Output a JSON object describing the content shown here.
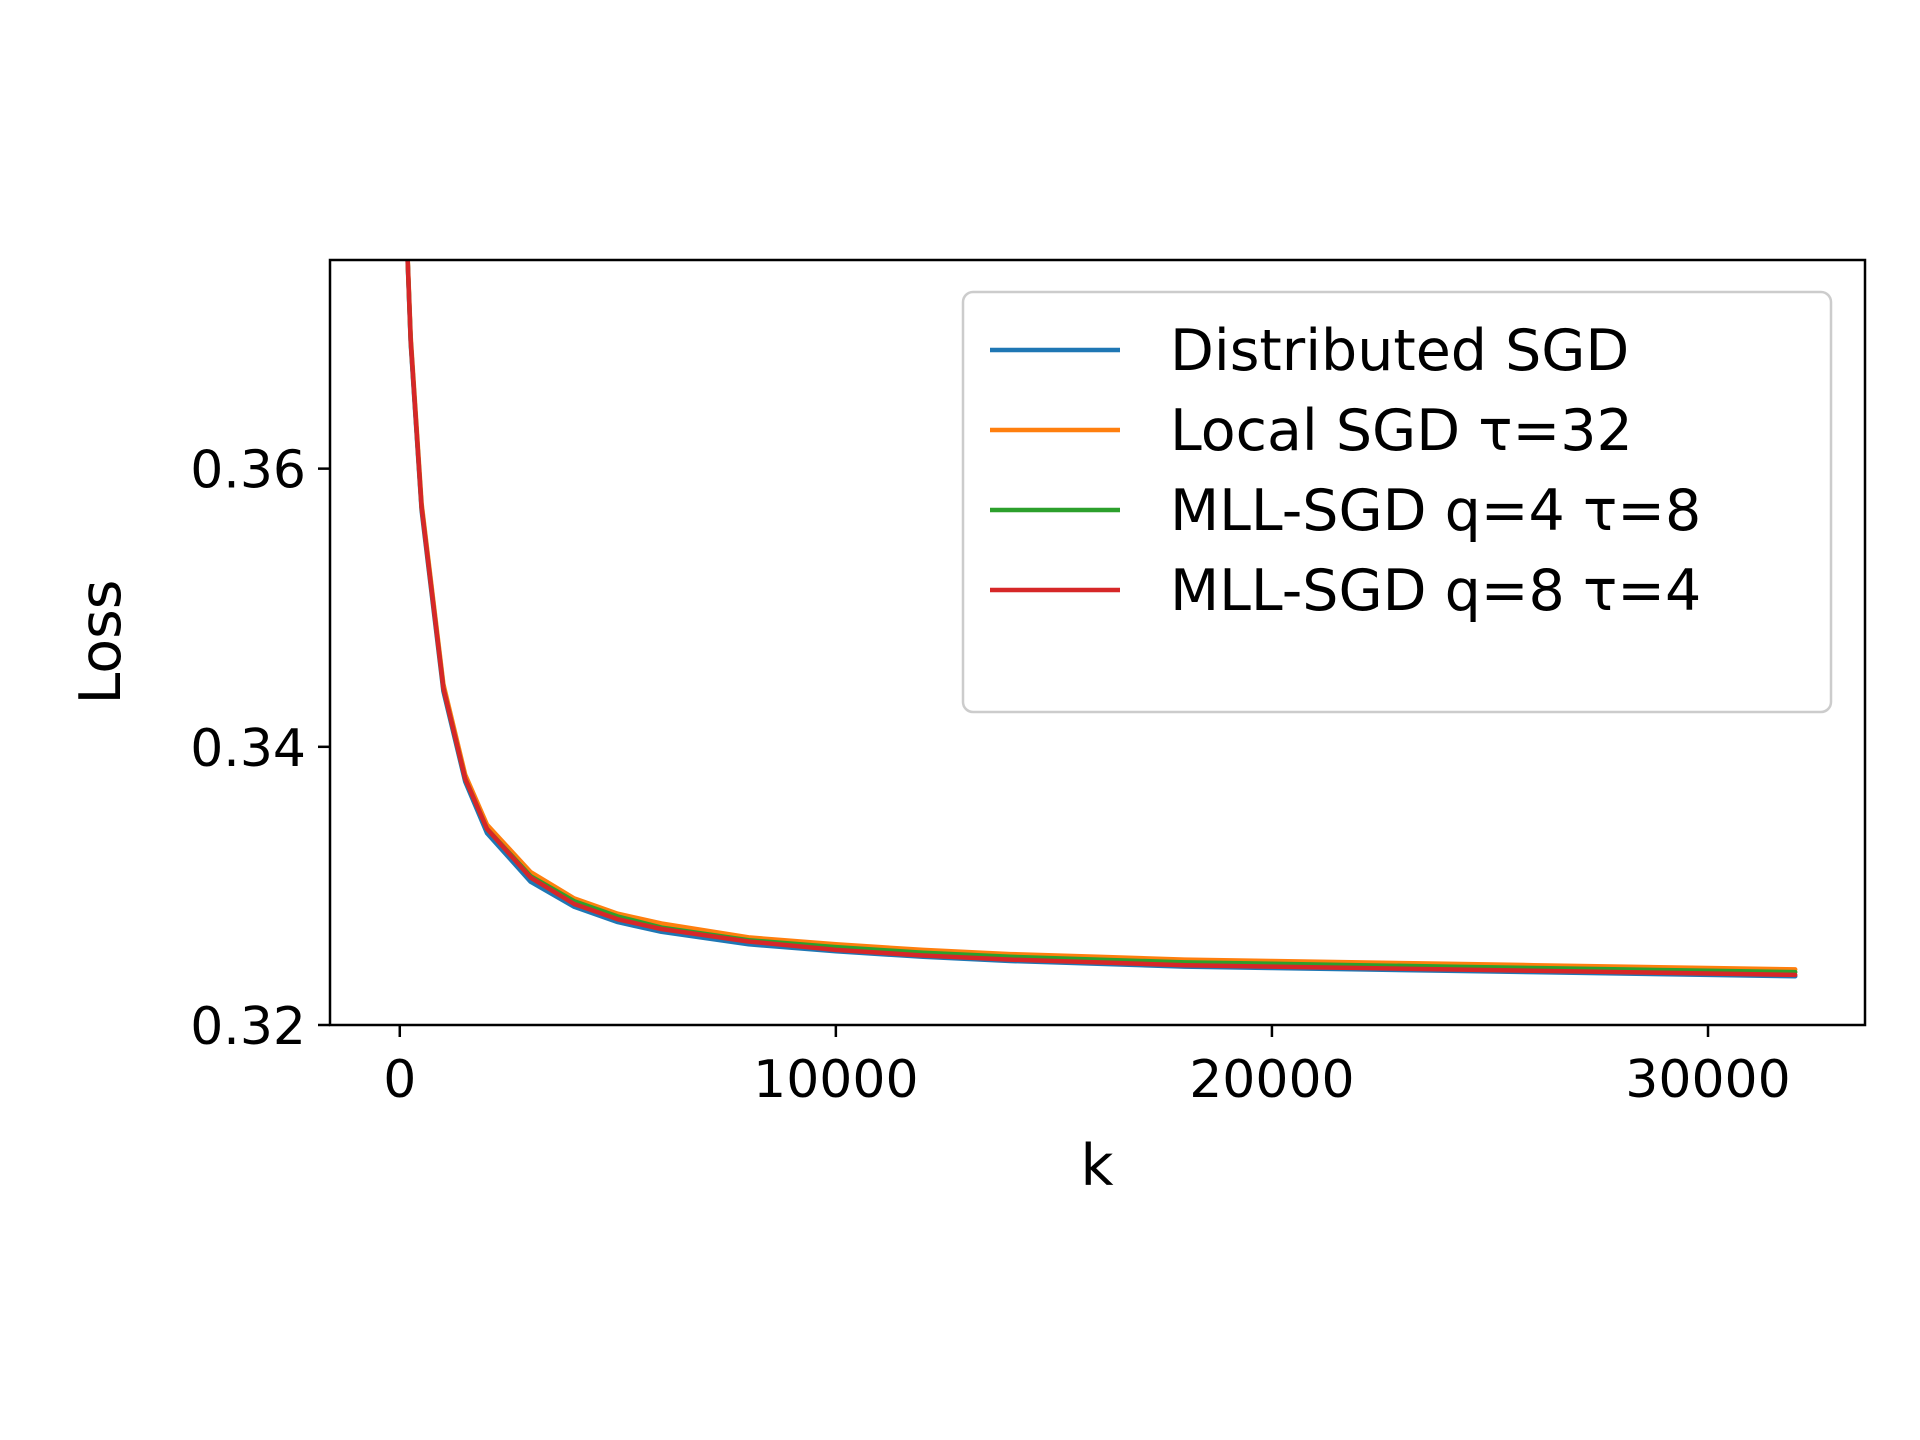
{
  "chart_data": {
    "type": "line",
    "title": "",
    "xlabel": "k",
    "ylabel": "Loss",
    "xlim": [
      -1600,
      33600
    ],
    "ylim": [
      0.32,
      0.375
    ],
    "xticks": [
      0,
      10000,
      20000,
      30000
    ],
    "xtick_labels": [
      "0",
      "10000",
      "20000",
      "30000"
    ],
    "yticks": [
      0.32,
      0.34,
      0.36
    ],
    "ytick_labels": [
      "0.32",
      "0.34",
      "0.36"
    ],
    "grid": false,
    "legend_position": "top-right",
    "x": [
      0,
      250,
      500,
      1000,
      1500,
      2000,
      3000,
      4000,
      5000,
      6000,
      8000,
      10000,
      12000,
      14000,
      16000,
      18000,
      20000,
      22000,
      24000,
      26000,
      28000,
      30000,
      32000
    ],
    "series": [
      {
        "name": "Distributed SGD",
        "color": "#1f77b4",
        "values": [
          0.39,
          0.369,
          0.357,
          0.344,
          0.3375,
          0.3338,
          0.3303,
          0.3285,
          0.3274,
          0.3267,
          0.3258,
          0.3253,
          0.3249,
          0.3246,
          0.3244,
          0.3242,
          0.3241,
          0.324,
          0.3239,
          0.3238,
          0.3237,
          0.3236,
          0.3235
        ]
      },
      {
        "name": "Local SGD τ=32",
        "color": "#ff7f0e",
        "values": [
          0.39,
          0.3695,
          0.3575,
          0.3445,
          0.338,
          0.3344,
          0.331,
          0.3291,
          0.328,
          0.3273,
          0.3263,
          0.3258,
          0.3254,
          0.3251,
          0.3249,
          0.3247,
          0.3246,
          0.3245,
          0.3244,
          0.3243,
          0.3242,
          0.3241,
          0.324
        ]
      },
      {
        "name": "MLL-SGD q=4 τ=8",
        "color": "#2ca02c",
        "values": [
          0.39,
          0.3692,
          0.3572,
          0.3442,
          0.3377,
          0.3341,
          0.3307,
          0.3289,
          0.3278,
          0.327,
          0.3261,
          0.3256,
          0.3252,
          0.3249,
          0.3247,
          0.3245,
          0.3244,
          0.3243,
          0.3242,
          0.3241,
          0.324,
          0.3239,
          0.3238
        ]
      },
      {
        "name": "MLL-SGD q=8 τ=4",
        "color": "#d62728",
        "values": [
          0.39,
          0.3692,
          0.3572,
          0.3442,
          0.3377,
          0.3341,
          0.3306,
          0.3287,
          0.3276,
          0.3269,
          0.326,
          0.3254,
          0.325,
          0.3247,
          0.3245,
          0.3243,
          0.3242,
          0.3241,
          0.324,
          0.3239,
          0.3238,
          0.3237,
          0.3236
        ]
      }
    ]
  }
}
